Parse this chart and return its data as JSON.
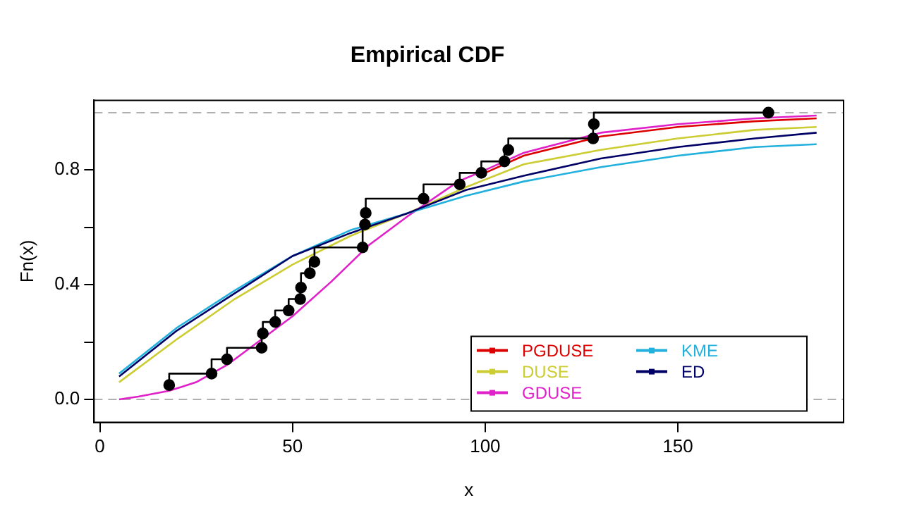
{
  "chart_data": {
    "type": "line",
    "title": "Empirical CDF",
    "xlabel": "x",
    "ylabel": "Fn(x)",
    "xlim": [
      -1.5,
      193
    ],
    "xticks": [
      0,
      50,
      100,
      150
    ],
    "ylim": [
      -0.08,
      1.043
    ],
    "yticks": [
      {
        "value": 0,
        "label": "0.0"
      },
      {
        "value": 0.2,
        "label": null
      },
      {
        "value": 0.4,
        "label": "0.4"
      },
      {
        "value": 0.6,
        "label": null
      },
      {
        "value": 0.8,
        "label": "0.8"
      }
    ],
    "grid": false,
    "legend": "bottom right",
    "marker": "none",
    "line_style": "solid",
    "ref_lines": [
      {
        "axis": "y",
        "value": 0,
        "color": "#b0b0b0",
        "line_style": "dashed"
      },
      {
        "axis": "y",
        "value": 1,
        "color": "#b0b0b0",
        "line_style": "dashed"
      }
    ],
    "series": [
      {
        "type": "step",
        "color": "#000000",
        "marker": "circle",
        "x": [
          18,
          29,
          33,
          42,
          42.3,
          45.5,
          49,
          52,
          52.2,
          54.5,
          55.7,
          68.2,
          68.8,
          69,
          84,
          93.4,
          99,
          105,
          106,
          128,
          128.2,
          173.5
        ],
        "values": [
          0.05,
          0.09,
          0.14,
          0.18,
          0.23,
          0.27,
          0.31,
          0.35,
          0.39,
          0.44,
          0.48,
          0.53,
          0.61,
          0.65,
          0.7,
          0.75,
          0.79,
          0.83,
          0.87,
          0.91,
          0.96,
          1.0
        ]
      },
      {
        "name": "PGDUSE",
        "color": "#dd0000",
        "x": [
          100,
          110,
          130,
          150,
          170,
          186
        ],
        "values": [
          0.79,
          0.85,
          0.917,
          0.95,
          0.97,
          0.98
        ]
      },
      {
        "name": "DUSE",
        "color": "#cccc33",
        "x": [
          5,
          20,
          35,
          50,
          65,
          80,
          95,
          110,
          130,
          150,
          170,
          186
        ],
        "values": [
          0.06,
          0.21,
          0.35,
          0.47,
          0.57,
          0.65,
          0.74,
          0.82,
          0.87,
          0.91,
          0.94,
          0.95
        ]
      },
      {
        "name": "GDUSE",
        "color": "#e020c8",
        "x": [
          5,
          10,
          18,
          25,
          33,
          40,
          50,
          60,
          70,
          80,
          93,
          100,
          110,
          130,
          150,
          170,
          186
        ],
        "values": [
          0.0,
          0.01,
          0.03,
          0.06,
          0.12,
          0.19,
          0.29,
          0.41,
          0.54,
          0.64,
          0.76,
          0.8,
          0.86,
          0.93,
          0.96,
          0.98,
          0.99
        ]
      },
      {
        "name": "KME",
        "color": "#22b0dd",
        "x": [
          5,
          20,
          35,
          50,
          65,
          80,
          95,
          110,
          130,
          150,
          170,
          186
        ],
        "values": [
          0.09,
          0.25,
          0.38,
          0.5,
          0.59,
          0.65,
          0.71,
          0.76,
          0.81,
          0.85,
          0.88,
          0.89
        ]
      },
      {
        "name": "ED",
        "color": "#000066",
        "x": [
          5,
          20,
          35,
          50,
          65,
          80,
          95,
          110,
          130,
          150,
          170,
          186
        ],
        "values": [
          0.08,
          0.24,
          0.37,
          0.5,
          0.58,
          0.65,
          0.73,
          0.78,
          0.84,
          0.88,
          0.91,
          0.93
        ]
      }
    ]
  }
}
